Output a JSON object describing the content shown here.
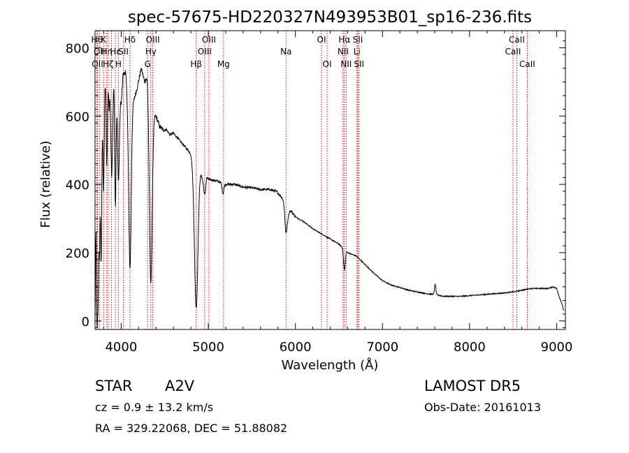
{
  "chart_data": {
    "type": "line",
    "title": "spec-57675-HD220327N493953B01_sp16-236.fits",
    "xlabel": "Wavelength (Å)",
    "ylabel": "Flux (relative)",
    "xlim": [
      3700,
      9100
    ],
    "ylim": [
      -25,
      850
    ],
    "xticks": [
      4000,
      5000,
      6000,
      7000,
      8000,
      9000
    ],
    "yticks": [
      0,
      200,
      400,
      600,
      800
    ],
    "line_color": "#000000",
    "marker_color": "#cc0000",
    "continuum": [
      [
        3700,
        10
      ],
      [
        3712,
        500
      ],
      [
        3725,
        380
      ],
      [
        3745,
        560
      ],
      [
        3765,
        480
      ],
      [
        3790,
        640
      ],
      [
        3815,
        700
      ],
      [
        3840,
        760
      ],
      [
        3862,
        620
      ],
      [
        3885,
        800
      ],
      [
        3905,
        650
      ],
      [
        3925,
        780
      ],
      [
        3950,
        700
      ],
      [
        3975,
        760
      ],
      [
        4000,
        640
      ],
      [
        4020,
        720
      ],
      [
        4050,
        730
      ],
      [
        4080,
        630
      ],
      [
        4115,
        640
      ],
      [
        4150,
        650
      ],
      [
        4190,
        690
      ],
      [
        4230,
        740
      ],
      [
        4270,
        700
      ],
      [
        4300,
        720
      ],
      [
        4330,
        640
      ],
      [
        4370,
        610
      ],
      [
        4400,
        600
      ],
      [
        4440,
        570
      ],
      [
        4480,
        560
      ],
      [
        4520,
        560
      ],
      [
        4560,
        545
      ],
      [
        4600,
        550
      ],
      [
        4650,
        535
      ],
      [
        4700,
        520
      ],
      [
        4750,
        505
      ],
      [
        4800,
        490
      ],
      [
        4820,
        470
      ],
      [
        4900,
        450
      ],
      [
        4940,
        410
      ],
      [
        4960,
        430
      ],
      [
        5000,
        415
      ],
      [
        5100,
        410
      ],
      [
        5200,
        400
      ],
      [
        5300,
        400
      ],
      [
        5400,
        392
      ],
      [
        5500,
        390
      ],
      [
        5600,
        385
      ],
      [
        5700,
        385
      ],
      [
        5780,
        380
      ],
      [
        5850,
        360
      ],
      [
        5900,
        340
      ],
      [
        6000,
        305
      ],
      [
        6100,
        290
      ],
      [
        6200,
        270
      ],
      [
        6300,
        255
      ],
      [
        6400,
        240
      ],
      [
        6500,
        225
      ],
      [
        6600,
        200
      ],
      [
        6700,
        190
      ],
      [
        6800,
        165
      ],
      [
        6900,
        140
      ],
      [
        7000,
        118
      ],
      [
        7100,
        105
      ],
      [
        7200,
        98
      ],
      [
        7300,
        90
      ],
      [
        7400,
        85
      ],
      [
        7500,
        80
      ],
      [
        7580,
        78
      ],
      [
        7650,
        75
      ],
      [
        7700,
        72
      ],
      [
        7800,
        72
      ],
      [
        7900,
        72
      ],
      [
        8000,
        74
      ],
      [
        8100,
        76
      ],
      [
        8200,
        78
      ],
      [
        8300,
        80
      ],
      [
        8400,
        82
      ],
      [
        8500,
        85
      ],
      [
        8600,
        90
      ],
      [
        8700,
        95
      ],
      [
        8800,
        95
      ],
      [
        8900,
        95
      ],
      [
        8960,
        100
      ],
      [
        9000,
        95
      ],
      [
        9030,
        70
      ],
      [
        9060,
        50
      ],
      [
        9080,
        30
      ]
    ],
    "absorption": [
      [
        3720,
        400,
        8
      ],
      [
        3735,
        320,
        6
      ],
      [
        3750,
        350,
        7
      ],
      [
        3771,
        340,
        6
      ],
      [
        3798,
        280,
        7
      ],
      [
        3835,
        300,
        7
      ],
      [
        3889,
        340,
        9
      ],
      [
        3933,
        420,
        8
      ],
      [
        3970,
        340,
        11
      ],
      [
        4101,
        480,
        14
      ],
      [
        4340,
        520,
        16
      ],
      [
        4861,
        420,
        20
      ],
      [
        4960,
        60,
        10
      ],
      [
        5169,
        30,
        10
      ],
      [
        5890,
        40,
        10
      ],
      [
        5900,
        50,
        18
      ],
      [
        6563,
        60,
        10
      ]
    ],
    "emission": [
      [
        7605,
        30,
        8
      ]
    ],
    "line_markers": [
      {
        "x": 3722,
        "row": 0,
        "label": "Hθ"
      },
      {
        "x": 3750,
        "row": 1,
        "label": "OII"
      },
      {
        "x": 3728,
        "row": 2,
        "label": "OII"
      },
      {
        "x": 3798,
        "row": 0,
        "label": "K"
      },
      {
        "x": 3835,
        "row": 1,
        "label": "Hη"
      },
      {
        "x": 3852,
        "row": 2,
        "label": "Hζ"
      },
      {
        "x": 3889,
        "row": 0,
        "label": ""
      },
      {
        "x": 3933,
        "row": 1,
        "label": "Hε"
      },
      {
        "x": 3968,
        "row": 2,
        "label": "H"
      },
      {
        "x": 4026,
        "row": 1,
        "label": "SII"
      },
      {
        "x": 4101,
        "row": 0,
        "label": "Hδ"
      },
      {
        "x": 4304,
        "row": 2,
        "label": "G"
      },
      {
        "x": 4340,
        "row": 1,
        "label": "Hγ"
      },
      {
        "x": 4363,
        "row": 0,
        "label": "OIII"
      },
      {
        "x": 4861,
        "row": 2,
        "label": "Hβ"
      },
      {
        "x": 4959,
        "row": 1,
        "label": "OIII"
      },
      {
        "x": 5007,
        "row": 0,
        "label": "OIII"
      },
      {
        "x": 5175,
        "row": 2,
        "label": "Mg"
      },
      {
        "x": 5893,
        "row": 1,
        "label": "Na"
      },
      {
        "x": 6300,
        "row": 0,
        "label": "OI"
      },
      {
        "x": 6364,
        "row": 2,
        "label": "OI"
      },
      {
        "x": 6548,
        "row": 1,
        "label": "NII"
      },
      {
        "x": 6563,
        "row": 0,
        "label": "Hα"
      },
      {
        "x": 6583,
        "row": 2,
        "label": "NII"
      },
      {
        "x": 6707,
        "row": 1,
        "label": "Li"
      },
      {
        "x": 6717,
        "row": 0,
        "label": "SII"
      },
      {
        "x": 6731,
        "row": 2,
        "label": "SII"
      },
      {
        "x": 8498,
        "row": 1,
        "label": "CaII"
      },
      {
        "x": 8542,
        "row": 0,
        "label": "CaII"
      },
      {
        "x": 8662,
        "row": 2,
        "label": "CaII"
      }
    ]
  },
  "info": {
    "object_class": "STAR",
    "subclass": "A2V",
    "survey": "LAMOST DR5",
    "redshift": "cz = 0.9 ± 13.2 km/s",
    "obs_date": "Obs-Date: 20161013",
    "coords": "RA = 329.22068, DEC =  51.88082"
  }
}
